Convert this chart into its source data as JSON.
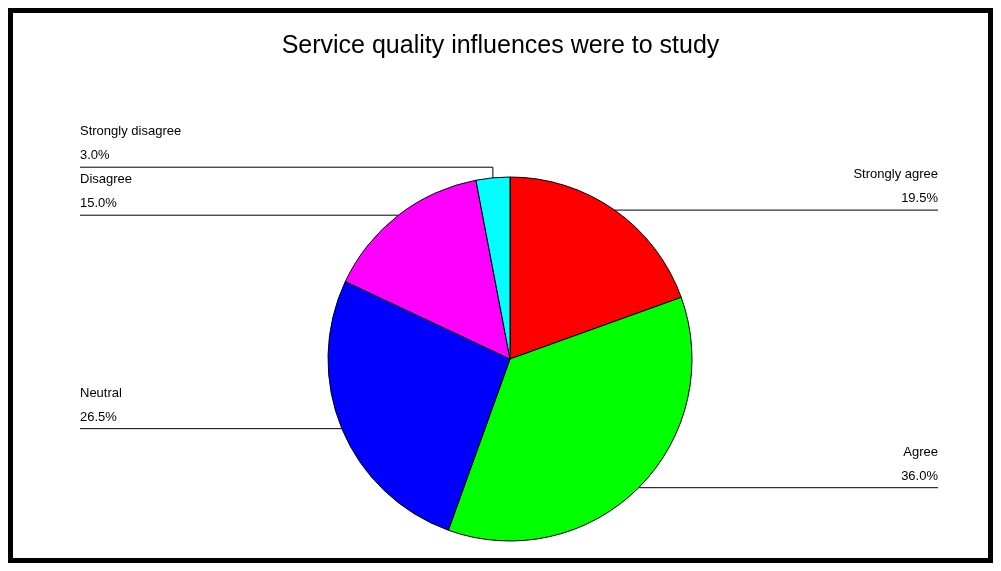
{
  "chart_data": {
    "type": "pie",
    "title": "Service quality influences were to study",
    "categories": [
      "Strongly agree",
      "Agree",
      "Neutral",
      "Disagree",
      "Strongly disagree"
    ],
    "values": [
      19.5,
      36,
      26.5,
      15,
      3
    ],
    "value_labels": [
      "19.5%",
      "36.0%",
      "26.5%",
      "15.0%",
      "3.0%"
    ],
    "colors": [
      "#ff0000",
      "#00ff00",
      "#0000ff",
      "#ff00ff",
      "#00ffff"
    ],
    "legend": false
  }
}
